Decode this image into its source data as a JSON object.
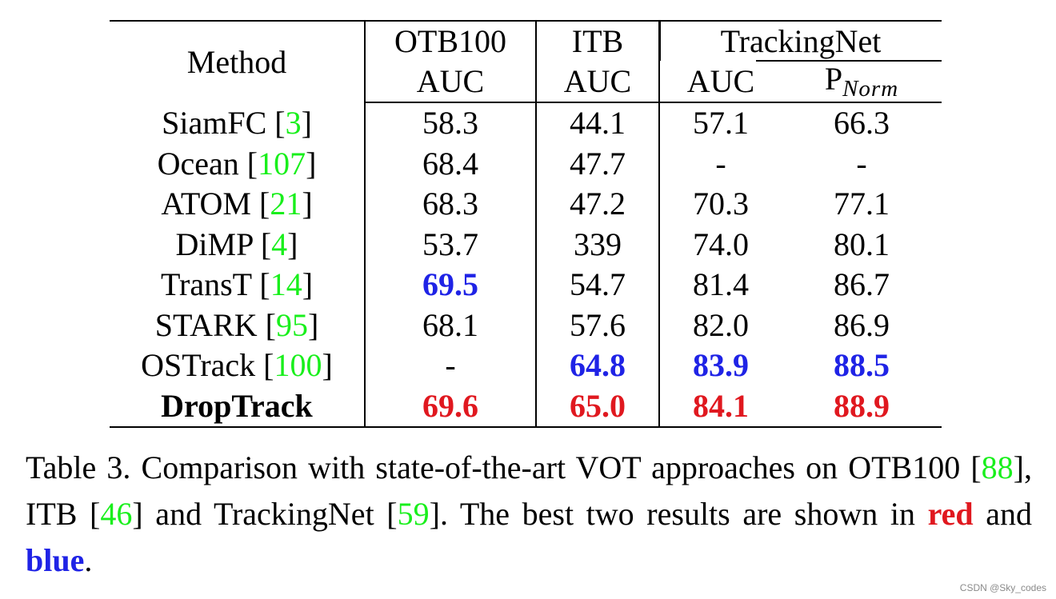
{
  "colors": {
    "best": "#e0181f",
    "second": "#1f23e6",
    "citation": "#19ef1c"
  },
  "table": {
    "method_header": "Method",
    "groups": {
      "otb100": "OTB100",
      "itb": "ITB",
      "trackingnet": "TrackingNet"
    },
    "subheaders": {
      "otb_auc": "AUC",
      "itb_auc": "AUC",
      "tn_auc": "AUC",
      "tn_pnorm_base": "P",
      "tn_pnorm_sub": "Norm"
    },
    "rows": [
      {
        "method": "SiamFC",
        "cite": "3",
        "otb": "58.3",
        "itb": "44.1",
        "tn_auc": "57.1",
        "tn_p": "66.3"
      },
      {
        "method": "Ocean",
        "cite": "107",
        "otb": "68.4",
        "itb": "47.7",
        "tn_auc": "-",
        "tn_p": "-"
      },
      {
        "method": "ATOM",
        "cite": "21",
        "otb": "68.3",
        "itb": "47.2",
        "tn_auc": "70.3",
        "tn_p": "77.1"
      },
      {
        "method": "DiMP",
        "cite": "4",
        "otb": "53.7",
        "itb": "339",
        "tn_auc": "74.0",
        "tn_p": "80.1"
      },
      {
        "method": "TransT",
        "cite": "14",
        "otb": "69.5",
        "itb": "54.7",
        "tn_auc": "81.4",
        "tn_p": "86.7"
      },
      {
        "method": "STARK",
        "cite": "95",
        "otb": "68.1",
        "itb": "57.6",
        "tn_auc": "82.0",
        "tn_p": "86.9"
      },
      {
        "method": "OSTrack",
        "cite": "100",
        "otb": "-",
        "itb": "64.8",
        "tn_auc": "83.9",
        "tn_p": "88.5"
      },
      {
        "method": "DropTrack",
        "cite": "",
        "otb": "69.6",
        "itb": "65.0",
        "tn_auc": "84.1",
        "tn_p": "88.9"
      }
    ]
  },
  "caption": {
    "prefix": "Table 3.  Comparison with state-of-the-art VOT approaches on OTB100 [",
    "cite_otb": "88",
    "mid1": "], ITB [",
    "cite_itb": "46",
    "mid2": "] and TrackingNet [",
    "cite_tn": "59",
    "mid3": "].  The best two results are shown in ",
    "red_word": "red",
    "and_word": " and ",
    "blue_word": "blue",
    "end": "."
  },
  "watermark": "CSDN @Sky_codes"
}
